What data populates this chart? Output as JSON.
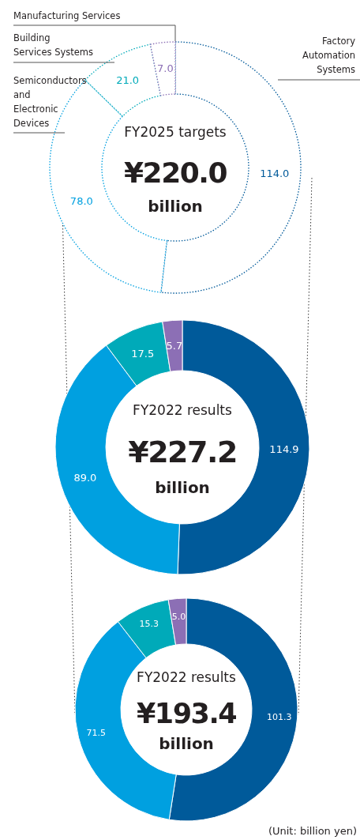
{
  "chart_data": [
    {
      "type": "donut",
      "title": "FY2025 targets",
      "subtitle": "¥220.0 billion",
      "categories": [
        "Factory Automation Systems",
        "Semiconductors and Electronic Devices",
        "Building Services Systems",
        "Manufacturing Services"
      ],
      "values": [
        114.0,
        78.0,
        21.0,
        7.0
      ],
      "value_labels": [
        "114.0",
        "78.0",
        "21.0",
        "7.0"
      ],
      "colors": [
        "#005a9a",
        "#00a0e0",
        "#00aab9",
        "#8c6fb5"
      ],
      "line_style": "dotted"
    },
    {
      "type": "donut",
      "title": "FY2022 results",
      "subtitle": "¥227.2 billion",
      "categories": [
        null,
        null,
        null,
        null
      ],
      "values": [
        114.9,
        89.0,
        17.5,
        5.7
      ],
      "value_labels": [
        "114.9",
        "89.0",
        "17.5",
        "5.7"
      ],
      "colors": [
        "#005a9a",
        "#00a0e0",
        "#00aab9",
        "#8c6fb5"
      ]
    },
    {
      "type": "donut",
      "title": "FY2022 results",
      "subtitle": "¥193.4 billion",
      "categories": [
        null,
        null,
        null,
        null
      ],
      "values": [
        101.3,
        71.5,
        15.3,
        5.0
      ],
      "value_labels": [
        "101.3",
        "71.5",
        "15.3",
        "5.0"
      ],
      "colors": [
        "#005a9a",
        "#00a0e0",
        "#00aab9",
        "#8c6fb5"
      ],
      "annotations": [
        "(Unit: billion yen)"
      ]
    }
  ]
}
